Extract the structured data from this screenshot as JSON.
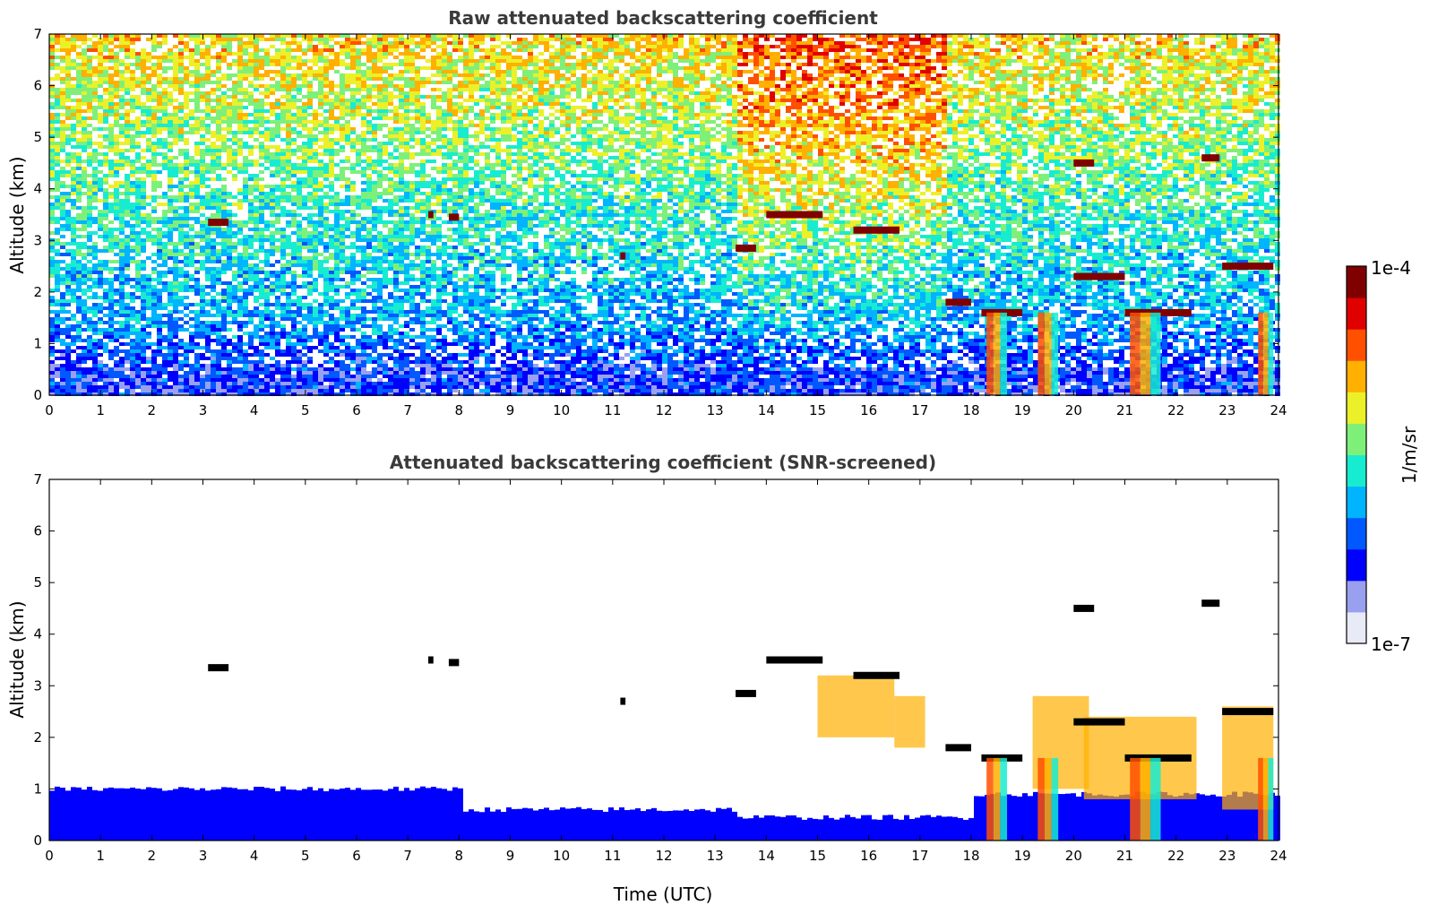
{
  "chart_data": [
    {
      "type": "heatmap",
      "id": "raw",
      "title": "Raw attenuated backscattering coefficient",
      "xlabel": "",
      "ylabel": "Altitude (km)",
      "xlim": [
        0,
        24
      ],
      "ylim": [
        0,
        7
      ],
      "xticks": [
        0,
        1,
        2,
        3,
        4,
        5,
        6,
        7,
        8,
        9,
        10,
        11,
        12,
        13,
        14,
        15,
        16,
        17,
        18,
        19,
        20,
        21,
        22,
        23,
        24
      ],
      "yticks": [
        0,
        1,
        2,
        3,
        4,
        5,
        6,
        7
      ],
      "features": {
        "cloud_layers": [
          {
            "t_start": 3.1,
            "t_end": 3.5,
            "alt": 3.35
          },
          {
            "t_start": 7.4,
            "t_end": 7.5,
            "alt": 3.5
          },
          {
            "t_start": 7.8,
            "t_end": 8.0,
            "alt": 3.45
          },
          {
            "t_start": 11.15,
            "t_end": 11.25,
            "alt": 2.7
          },
          {
            "t_start": 13.4,
            "t_end": 13.8,
            "alt": 2.85
          },
          {
            "t_start": 14.0,
            "t_end": 15.1,
            "alt": 3.5
          },
          {
            "t_start": 15.7,
            "t_end": 16.6,
            "alt": 3.2
          },
          {
            "t_start": 17.5,
            "t_end": 18.0,
            "alt": 1.8
          },
          {
            "t_start": 18.2,
            "t_end": 19.0,
            "alt": 1.6
          },
          {
            "t_start": 20.0,
            "t_end": 21.0,
            "alt": 2.3
          },
          {
            "t_start": 21.0,
            "t_end": 22.3,
            "alt": 1.6
          },
          {
            "t_start": 22.9,
            "t_end": 23.9,
            "alt": 2.5
          },
          {
            "t_start": 20.0,
            "t_end": 20.4,
            "alt": 4.5
          },
          {
            "t_start": 22.5,
            "t_end": 22.85,
            "alt": 4.6
          }
        ]
      }
    },
    {
      "type": "heatmap",
      "id": "screened",
      "title": "Attenuated backscattering coefficient (SNR-screened)",
      "xlabel": "Time (UTC)",
      "ylabel": "Altitude (km)",
      "xlim": [
        0,
        24
      ],
      "ylim": [
        0,
        7
      ],
      "xticks": [
        0,
        1,
        2,
        3,
        4,
        5,
        6,
        7,
        8,
        9,
        10,
        11,
        12,
        13,
        14,
        15,
        16,
        17,
        18,
        19,
        20,
        21,
        22,
        23,
        24
      ],
      "yticks": [
        0,
        1,
        2,
        3,
        4,
        5,
        6,
        7
      ]
    }
  ],
  "colorbar": {
    "label": "1/m/sr",
    "max_label": "1e-4",
    "min_label": "1e-7",
    "colors": [
      "#e8eaf8",
      "#9aa0f0",
      "#0000ff",
      "#0058ff",
      "#00b4ff",
      "#18ecd0",
      "#7ef07a",
      "#ecf028",
      "#ffb000",
      "#ff5000",
      "#e00000",
      "#800000"
    ]
  }
}
